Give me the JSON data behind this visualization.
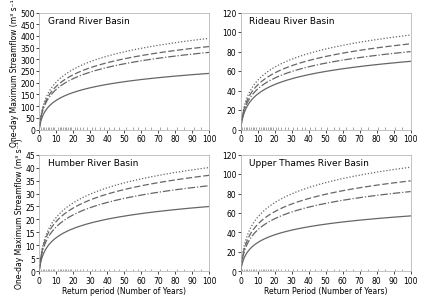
{
  "panels": [
    {
      "title": "Grand River Basin",
      "ylabel": "One-day Maximum Streamflow (m³ s⁻¹)",
      "xlabel": "",
      "ylim": [
        0,
        500
      ],
      "yticks": [
        0,
        50,
        100,
        150,
        200,
        250,
        300,
        350,
        400,
        450,
        500
      ],
      "xlim": [
        0,
        100
      ],
      "xticks": [
        0,
        10,
        20,
        30,
        40,
        50,
        60,
        70,
        80,
        90,
        100
      ],
      "curves": [
        {
          "style": "solid",
          "scale": 240
        },
        {
          "style": "dashdot",
          "scale": 330
        },
        {
          "style": "dashed",
          "scale": 355
        },
        {
          "style": "dotted",
          "scale": 390
        }
      ]
    },
    {
      "title": "Rideau River Basin",
      "ylabel": "",
      "xlabel": "",
      "ylim": [
        0,
        120
      ],
      "yticks": [
        0,
        20,
        40,
        60,
        80,
        100,
        120
      ],
      "xlim": [
        0,
        100
      ],
      "xticks": [
        0,
        10,
        20,
        30,
        40,
        50,
        60,
        70,
        80,
        90,
        100
      ],
      "curves": [
        {
          "style": "solid",
          "scale": 70
        },
        {
          "style": "dashdot",
          "scale": 80
        },
        {
          "style": "dashed",
          "scale": 88
        },
        {
          "style": "dotted",
          "scale": 97
        }
      ]
    },
    {
      "title": "Humber River Basin",
      "ylabel": "One-day Maximum Streamflow (m³ s⁻¹)",
      "xlabel": "Return period (Number of Years)",
      "ylim": [
        0,
        45
      ],
      "yticks": [
        0,
        5,
        10,
        15,
        20,
        25,
        30,
        35,
        40,
        45
      ],
      "xlim": [
        0,
        100
      ],
      "xticks": [
        0,
        10,
        20,
        30,
        40,
        50,
        60,
        70,
        80,
        90,
        100
      ],
      "curves": [
        {
          "style": "solid",
          "scale": 25
        },
        {
          "style": "dashdot",
          "scale": 33
        },
        {
          "style": "dashed",
          "scale": 37
        },
        {
          "style": "dotted",
          "scale": 40
        }
      ]
    },
    {
      "title": "Upper Thames River Basin",
      "ylabel": "",
      "xlabel": "Return Period (Number of Years)",
      "ylim": [
        0,
        120
      ],
      "yticks": [
        0,
        20,
        40,
        60,
        80,
        100,
        120
      ],
      "xlim": [
        0,
        100
      ],
      "xticks": [
        0,
        10,
        20,
        30,
        40,
        50,
        60,
        70,
        80,
        90,
        100
      ],
      "curves": [
        {
          "style": "solid",
          "scale": 57
        },
        {
          "style": "dashdot",
          "scale": 82
        },
        {
          "style": "dashed",
          "scale": 93
        },
        {
          "style": "dotted",
          "scale": 107
        }
      ]
    }
  ],
  "line_color": "#666666",
  "bg_color": "#ffffff",
  "fontsize_title": 6.5,
  "fontsize_tick": 5.5,
  "fontsize_label": 5.5
}
